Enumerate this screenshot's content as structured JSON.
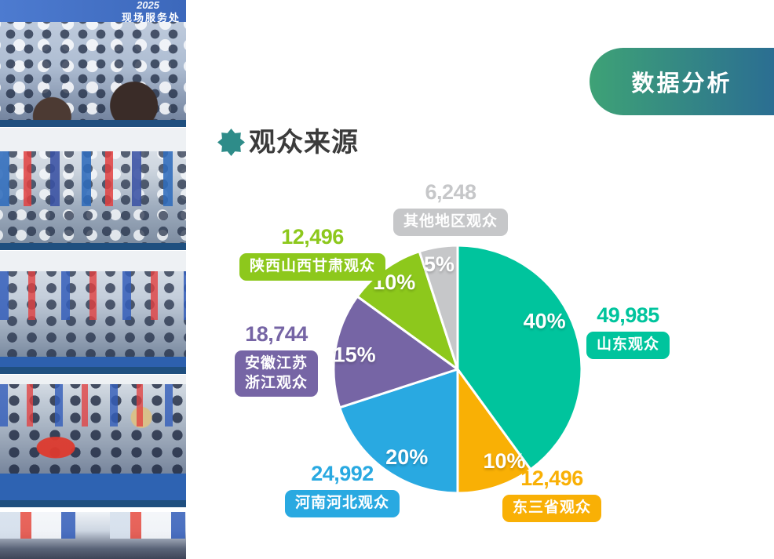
{
  "banner": {
    "label": "数据分析",
    "color_from": "#3EA276",
    "color_to": "#2B6E92",
    "text_color": "#FFFFFF"
  },
  "section": {
    "title": "观众来源",
    "icon_color": "#2E8C89",
    "title_color": "#3B3B3B"
  },
  "photos": {
    "items": [
      {
        "name": "exhibition-crowd-entrance",
        "overlay_year": "2025",
        "overlay_text": "现场服务处"
      },
      {
        "name": "exhibition-hall-banners"
      },
      {
        "name": "exhibition-hall-aisle"
      },
      {
        "name": "exhibition-crowd-carpet"
      },
      {
        "name": "exhibition-booths"
      }
    ]
  },
  "chart_data": {
    "type": "pie",
    "title": "观众来源",
    "direction": "clockwise",
    "start_angle_deg": 0,
    "legend_position": "around",
    "slice_gap_color": "#FFFFFF",
    "slices": [
      {
        "name": "shandong",
        "pill_text": "山东观众",
        "value": 49985,
        "value_text": "49,985",
        "percent": 40,
        "color": "#00C49D",
        "label_angle_deg": 61,
        "label_radius_f": 0.8
      },
      {
        "name": "dongsansheng",
        "pill_text": "东三省观众",
        "value": 12496,
        "value_text": "12,496",
        "percent": 10,
        "color": "#F9B005",
        "label_angle_deg": 153,
        "label_radius_f": 0.83
      },
      {
        "name": "henan-hebei",
        "pill_text": "河南河北观众",
        "value": 24992,
        "value_text": "24,992",
        "percent": 20,
        "color": "#29A9E1",
        "label_angle_deg": 210,
        "label_radius_f": 0.82
      },
      {
        "name": "anhui-jiangsu-zhejiang",
        "pill_text": "安徽江苏\n浙江观众",
        "value": 18744,
        "value_text": "18,744",
        "percent": 15,
        "color": "#7665A5",
        "label_angle_deg": 278,
        "label_radius_f": 0.84
      },
      {
        "name": "shaanxi-shanxi-gansu",
        "pill_text": "陕西山西甘肃观众",
        "value": 12496,
        "value_text": "12,496",
        "percent": 10,
        "color": "#8DC81C",
        "label_angle_deg": 324,
        "label_radius_f": 0.87
      },
      {
        "name": "other-regions",
        "pill_text": "其他地区观众",
        "value": 6248,
        "value_text": "6,248",
        "percent": 5,
        "color": "#C6C7C9",
        "label_angle_deg": 350,
        "label_radius_f": 0.86
      }
    ]
  }
}
